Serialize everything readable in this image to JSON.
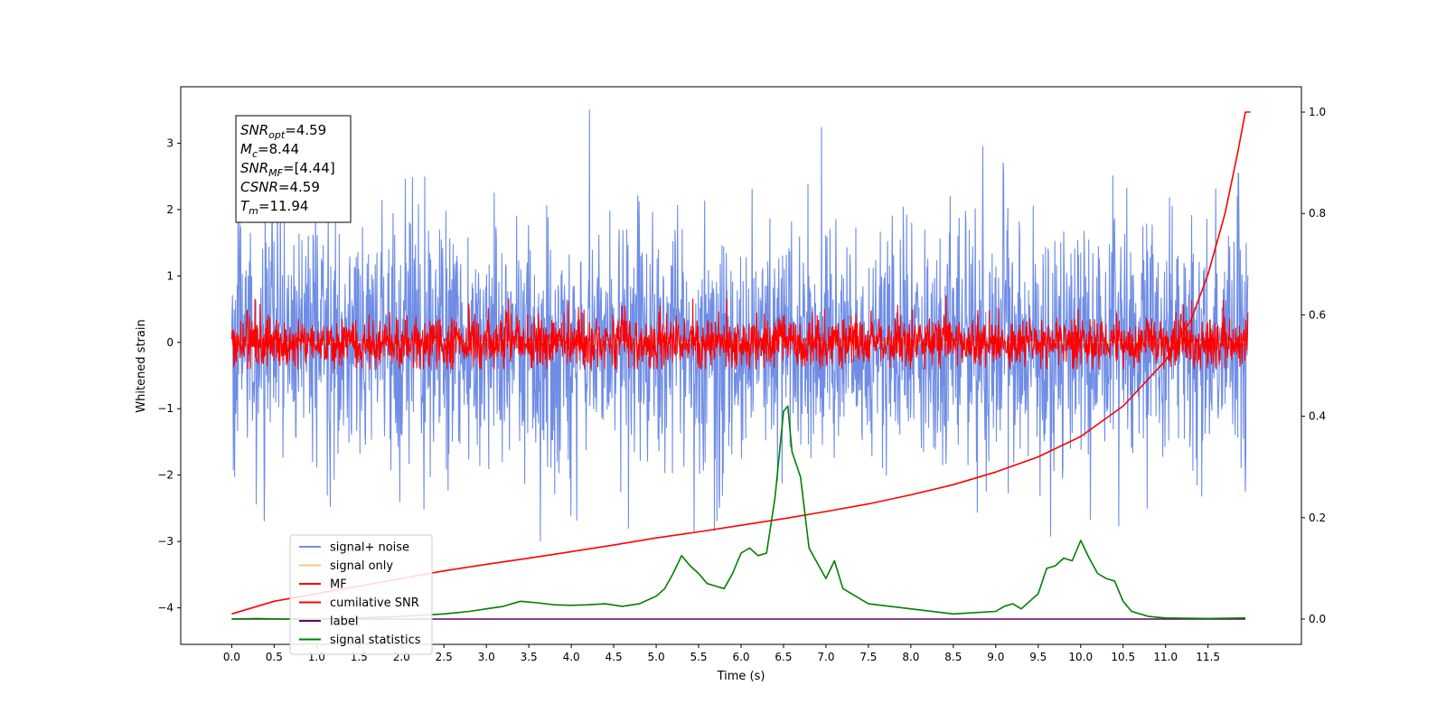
{
  "chart_data": {
    "type": "line",
    "xlabel": "Time (s)",
    "ylabel": "Whitened strain",
    "xlim": [
      -0.6,
      12.6
    ],
    "ylim_left": [
      -4.55,
      3.85
    ],
    "ylim_right": [
      -0.05,
      1.05
    ],
    "x_ticks": [
      0.0,
      0.5,
      1.0,
      1.5,
      2.0,
      2.5,
      3.0,
      3.5,
      4.0,
      4.5,
      5.0,
      5.5,
      6.0,
      6.5,
      7.0,
      7.5,
      8.0,
      8.5,
      9.0,
      9.5,
      10.0,
      10.5,
      11.0,
      11.5
    ],
    "x_tick_labels": [
      "0.0",
      "0.5",
      "1.0",
      "1.5",
      "2.0",
      "2.5",
      "3.0",
      "3.5",
      "4.0",
      "4.5",
      "5.0",
      "5.5",
      "6.0",
      "6.5",
      "7.0",
      "7.5",
      "8.0",
      "8.5",
      "9.0",
      "9.5",
      "10.0",
      "10.5",
      "11.0",
      "11.5"
    ],
    "y_ticks_left": [
      -4,
      -3,
      -2,
      -1,
      0,
      1,
      2,
      3
    ],
    "y_tick_labels_left": [
      "−4",
      "−3",
      "−2",
      "−1",
      "0",
      "1",
      "2",
      "3"
    ],
    "y_ticks_right": [
      0.0,
      0.2,
      0.4,
      0.6,
      0.8,
      1.0
    ],
    "y_tick_labels_right": [
      "0.0",
      "0.2",
      "0.4",
      "0.6",
      "0.8",
      "1.0"
    ],
    "annotation": {
      "snr_opt_label": "SNR",
      "snr_opt_sub": "opt",
      "snr_opt_value": "=4.59",
      "mc_label": "M",
      "mc_sub": "c",
      "mc_value": "=8.44",
      "snr_mf_label": "SNR",
      "snr_mf_sub": "MF",
      "snr_mf_value": "=[4.44]",
      "csnr_label": "CSNR",
      "csnr_value": "=4.59",
      "tm_label": "T",
      "tm_sub": "m",
      "tm_value": "=11.94"
    },
    "series": [
      {
        "name": "signal+ noise",
        "color": "#6f8de6",
        "axis": "left",
        "style": "noise",
        "x_range": [
          0.0,
          11.97
        ],
        "mean": 0.0,
        "std": 0.9,
        "range": [
          -4.1,
          3.5
        ]
      },
      {
        "name": "signal only",
        "color": "#f5c87a",
        "axis": "left",
        "style": "flat",
        "x_range": [
          0.0,
          11.97
        ],
        "value": 0.0
      },
      {
        "name": "MF",
        "color": "#ff0000",
        "axis": "left",
        "style": "noise",
        "x_range": [
          0.0,
          11.97
        ],
        "mean": 0.0,
        "std": 0.2,
        "range": [
          -0.4,
          0.8
        ]
      },
      {
        "name": "cumilative SNR",
        "color": "#ff0000",
        "axis": "right",
        "x": [
          0.0,
          0.5,
          1.0,
          1.5,
          2.0,
          2.5,
          3.0,
          3.5,
          4.0,
          4.5,
          5.0,
          5.5,
          6.0,
          6.5,
          7.0,
          7.5,
          8.0,
          8.5,
          9.0,
          9.5,
          10.0,
          10.5,
          11.0,
          11.3,
          11.5,
          11.7,
          11.85,
          11.94,
          12.0
        ],
        "y": [
          0.01,
          0.035,
          0.05,
          0.065,
          0.08,
          0.095,
          0.108,
          0.12,
          0.133,
          0.146,
          0.16,
          0.172,
          0.185,
          0.198,
          0.212,
          0.227,
          0.245,
          0.265,
          0.29,
          0.32,
          0.36,
          0.42,
          0.51,
          0.59,
          0.68,
          0.8,
          0.92,
          1.0,
          1.0
        ]
      },
      {
        "name": "label",
        "color": "#660066",
        "axis": "right",
        "x": [
          0.0,
          11.94
        ],
        "y": [
          0.0,
          0.0
        ]
      },
      {
        "name": "signal statistics",
        "color": "#008000",
        "axis": "right",
        "x": [
          0.0,
          0.3,
          0.6,
          1.0,
          1.5,
          2.0,
          2.5,
          2.8,
          3.0,
          3.2,
          3.4,
          3.6,
          3.8,
          4.0,
          4.2,
          4.4,
          4.6,
          4.8,
          5.0,
          5.1,
          5.2,
          5.3,
          5.4,
          5.5,
          5.6,
          5.7,
          5.8,
          5.9,
          6.0,
          6.1,
          6.2,
          6.3,
          6.4,
          6.5,
          6.55,
          6.6,
          6.7,
          6.8,
          6.9,
          7.0,
          7.1,
          7.2,
          7.5,
          8.0,
          8.5,
          9.0,
          9.1,
          9.2,
          9.3,
          9.4,
          9.5,
          9.6,
          9.7,
          9.8,
          9.9,
          10.0,
          10.1,
          10.2,
          10.3,
          10.4,
          10.5,
          10.6,
          10.8,
          11.0,
          11.5,
          11.94
        ],
        "y": [
          0.0,
          0.001,
          0.0,
          0.0,
          0.002,
          0.005,
          0.01,
          0.015,
          0.02,
          0.025,
          0.035,
          0.032,
          0.028,
          0.027,
          0.028,
          0.03,
          0.025,
          0.03,
          0.045,
          0.06,
          0.09,
          0.125,
          0.105,
          0.09,
          0.07,
          0.065,
          0.06,
          0.09,
          0.13,
          0.14,
          0.125,
          0.13,
          0.24,
          0.41,
          0.42,
          0.33,
          0.28,
          0.14,
          0.11,
          0.08,
          0.115,
          0.06,
          0.03,
          0.02,
          0.01,
          0.015,
          0.025,
          0.03,
          0.02,
          0.035,
          0.05,
          0.1,
          0.105,
          0.12,
          0.115,
          0.155,
          0.12,
          0.09,
          0.08,
          0.075,
          0.035,
          0.015,
          0.005,
          0.002,
          0.001,
          0.002
        ]
      }
    ]
  }
}
